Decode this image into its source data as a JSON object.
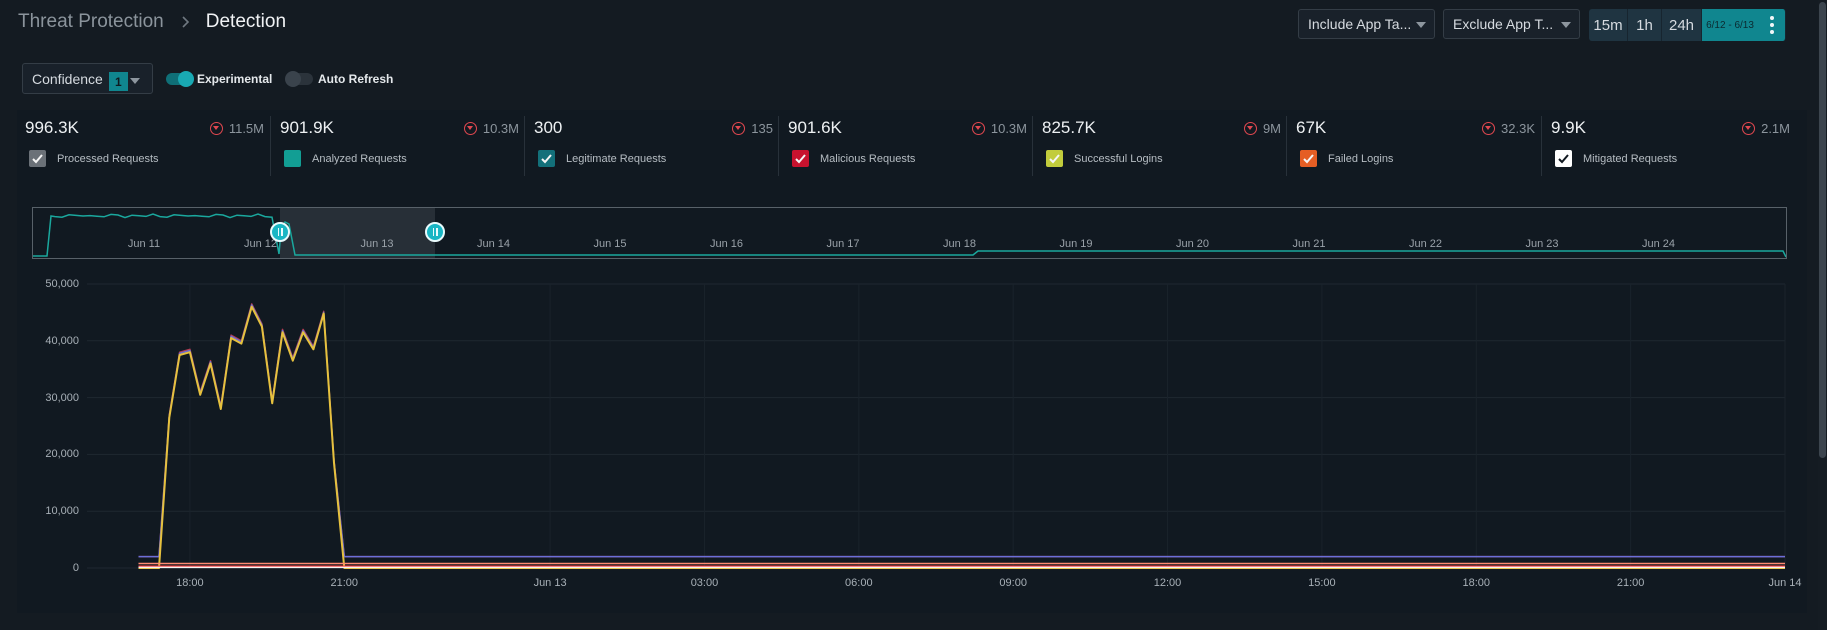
{
  "breadcrumb": {
    "parent": "Threat Protection",
    "current": "Detection"
  },
  "filters": {
    "include_app_tags": "Include App Ta...",
    "exclude_app_tags": "Exclude App T...",
    "time_buttons": [
      "15m",
      "1h",
      "24h"
    ],
    "date_range": "6/12 - 6/13",
    "confidence_label": "Confidence",
    "confidence_value": "1",
    "experimental_label": "Experimental",
    "experimental_on": true,
    "auto_refresh_label": "Auto Refresh",
    "auto_refresh_on": false
  },
  "stats": [
    {
      "value": "996.3K",
      "change": "11.5M",
      "label": "Processed Requests",
      "color": "#6b7178",
      "checked": true
    },
    {
      "value": "901.9K",
      "change": "10.3M",
      "label": "Analyzed Requests",
      "color": "#129e94",
      "checked": false
    },
    {
      "value": "300",
      "change": "135",
      "label": "Legitimate Requests",
      "color": "#13707a",
      "checked": true
    },
    {
      "value": "901.6K",
      "change": "10.3M",
      "label": "Malicious Requests",
      "color": "#c8122e",
      "checked": true
    },
    {
      "value": "825.7K",
      "change": "9M",
      "label": "Successful Logins",
      "color": "#c2cc3c",
      "checked": true
    },
    {
      "value": "67K",
      "change": "32.3K",
      "label": "Failed Logins",
      "color": "#e55e24",
      "checked": true
    },
    {
      "value": "9.9K",
      "change": "2.1M",
      "label": "Mitigated Requests",
      "color": "#ffffff",
      "checked": true
    }
  ],
  "navigator": {
    "labels": [
      "Jun 11",
      "Jun 12",
      "Jun 13",
      "Jun 14",
      "Jun 15",
      "Jun 16",
      "Jun 17",
      "Jun 18",
      "Jun 19",
      "Jun 20",
      "Jun 21",
      "Jun 22",
      "Jun 23",
      "Jun 24"
    ],
    "line_color": "#1aa89e"
  },
  "chart_data": {
    "type": "line",
    "ylim": [
      0,
      50000
    ],
    "y_ticks": [
      "50,000",
      "40,000",
      "30,000",
      "20,000",
      "10,000",
      "0"
    ],
    "x_ticks": [
      "18:00",
      "21:00",
      "Jun 13",
      "03:00",
      "06:00",
      "09:00",
      "12:00",
      "15:00",
      "18:00",
      "21:00",
      "Jun 14"
    ],
    "x_hours": [
      16.0,
      16.4,
      16.6,
      16.8,
      17.0,
      17.2,
      17.4,
      17.6,
      17.8,
      18.0,
      18.2,
      18.4,
      18.6,
      18.8,
      19.0,
      19.2,
      19.4,
      19.6,
      19.8,
      20.0,
      20.1,
      20.4,
      21.0,
      36.0,
      48.0
    ],
    "series": [
      {
        "color": "#b33a4e",
        "values": [
          2000,
          2000,
          27000,
          38000,
          38500,
          31000,
          36500,
          28500,
          41000,
          40000,
          46500,
          43000,
          29500,
          42000,
          37000,
          42000,
          39000,
          45200,
          19000,
          2000,
          2000,
          2000,
          2000,
          2000,
          2000
        ]
      },
      {
        "color": "#6a6fd8",
        "values": [
          2000,
          2000,
          26800,
          37800,
          38300,
          30800,
          36300,
          28300,
          40800,
          39800,
          46300,
          42800,
          29300,
          41800,
          36800,
          41800,
          38800,
          45000,
          18800,
          2000,
          2000,
          2000,
          2000,
          2000,
          2000
        ]
      },
      {
        "color": "#e6c13e",
        "values": [
          0,
          0,
          26500,
          37500,
          38000,
          30500,
          36000,
          28000,
          40500,
          39500,
          46000,
          42500,
          29000,
          41500,
          36500,
          41500,
          38500,
          44800,
          18500,
          0,
          0,
          0,
          0,
          0,
          0
        ]
      },
      {
        "color": "#ff8a72",
        "values": [
          800,
          800,
          800,
          800,
          800,
          800,
          800,
          800,
          800,
          800,
          800,
          800,
          800,
          800,
          800,
          800,
          800,
          800,
          800,
          800,
          800,
          800,
          800,
          800,
          800
        ]
      },
      {
        "color": "#ff3b3b",
        "values": [
          300,
          300,
          300,
          300,
          300,
          300,
          300,
          300,
          300,
          300,
          300,
          300,
          300,
          300,
          300,
          300,
          300,
          300,
          300,
          300,
          300,
          300,
          300,
          300,
          300
        ]
      },
      {
        "color": "#f4f4f4",
        "values": [
          100,
          100,
          100,
          100,
          100,
          100,
          100,
          100,
          100,
          100,
          100,
          100,
          100,
          100,
          100,
          100,
          100,
          100,
          100,
          100,
          100,
          100,
          100,
          100,
          100
        ]
      }
    ]
  }
}
